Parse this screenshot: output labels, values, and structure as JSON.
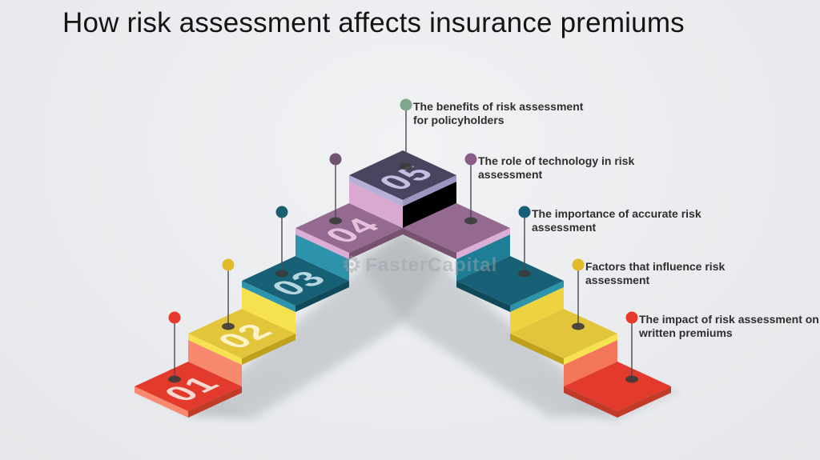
{
  "title": "How risk assessment affects insurance premiums",
  "watermark": {
    "icon": "gear-icon",
    "text": "FasterCapital"
  },
  "background_color": "#e9ebee",
  "palette": {
    "red": {
      "top": "#e23a2c",
      "light": "#f9896e",
      "dark": "#c23a28",
      "riser_left": "#f9896e",
      "riser_right": "#f3765b",
      "number_color": "#f8d9d1"
    },
    "yellow": {
      "top": "#e3c53b",
      "light": "#f6e24e",
      "dark": "#bfa11d",
      "riser_left": "#f6e24e",
      "riser_right": "#eed340",
      "number_color": "#fdf3c6"
    },
    "teal": {
      "top": "#176076",
      "light": "#2d93ab",
      "dark": "#10495a",
      "riser_left": "#2d93ab",
      "riser_right": "#1e7e95",
      "number_color": "#b7d6e0"
    },
    "mauve": {
      "top": "#946a90",
      "light": "#dcaed5",
      "dark": "#77526f",
      "riser_left": "#d9a9d0",
      "riser_right": "#c violet",
      "number_color": "#e5c1dd"
    },
    "slate": {
      "top": "#474560",
      "light": "#b6b0d6",
      "dark": "#9b95c0",
      "riser_left": "#d9a9d0",
      "riser_right": "#c08fb7",
      "number_color": "#c6bfe4"
    }
  },
  "steps": [
    {
      "id": "step-01",
      "number": "01",
      "family": "red",
      "side": "left"
    },
    {
      "id": "step-02",
      "number": "02",
      "family": "yellow",
      "side": "left"
    },
    {
      "id": "step-03",
      "number": "03",
      "family": "teal",
      "side": "left"
    },
    {
      "id": "step-04",
      "number": "04",
      "family": "mauve",
      "side": "left"
    },
    {
      "id": "step-05",
      "number": "05",
      "family": "slate",
      "side": "apex"
    },
    {
      "id": "step-04-right",
      "number": "",
      "family": "mauve",
      "side": "right"
    },
    {
      "id": "step-03-right",
      "number": "",
      "family": "teal",
      "side": "right"
    },
    {
      "id": "step-02-right",
      "number": "",
      "family": "yellow",
      "side": "right"
    },
    {
      "id": "step-01-right",
      "number": "",
      "family": "red",
      "side": "right"
    }
  ],
  "pins": [
    {
      "id": "pin-01",
      "ball_color": "#e6392b",
      "label": null
    },
    {
      "id": "pin-02",
      "ball_color": "#e3ba2a",
      "label": null
    },
    {
      "id": "pin-03",
      "ball_color": "#1b6072",
      "label": null
    },
    {
      "id": "pin-04",
      "ball_color": "#6e5470",
      "label": null
    },
    {
      "id": "pin-05",
      "ball_color": "#7ea78d",
      "label": {
        "lines": [
          "The benefits of risk assessment",
          "for policyholders"
        ]
      }
    },
    {
      "id": "pin-04-right",
      "ball_color": "#8a5d88",
      "label": {
        "lines": [
          "The role of technology in risk",
          "assessment"
        ]
      }
    },
    {
      "id": "pin-03-right",
      "ball_color": "#156077",
      "label": {
        "lines": [
          "The importance of accurate risk",
          "assessment"
        ]
      }
    },
    {
      "id": "pin-02-right",
      "ball_color": "#e3ba2a",
      "label": {
        "lines": [
          "Factors that influence risk",
          "assessment"
        ]
      }
    },
    {
      "id": "pin-01-right",
      "ball_color": "#e6392b",
      "label": {
        "lines": [
          "The impact of risk assessment on",
          "written premiums"
        ]
      }
    }
  ]
}
